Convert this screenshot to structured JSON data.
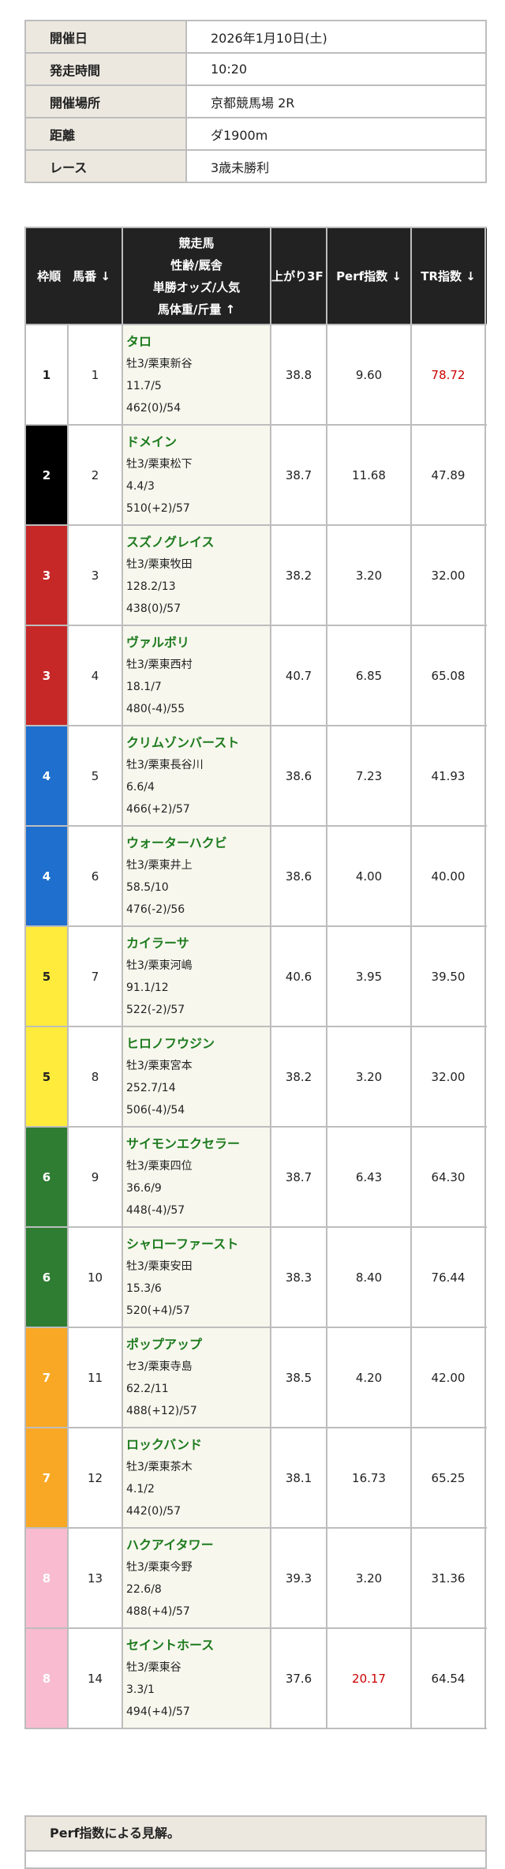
{
  "info": [
    {
      "label": "開催日",
      "value": "2026年1月10日(土)"
    },
    {
      "label": "発走時間",
      "value": "10:20"
    },
    {
      "label": "開催場所",
      "value": "京都競馬場 2R"
    },
    {
      "label": "距離",
      "value": "ダ1900m"
    },
    {
      "label": "レース",
      "value": "3歳未勝利"
    }
  ],
  "table": {
    "headers": {
      "frame_num": "枠順　馬番 ↓",
      "horse": [
        "競走馬",
        "性齢/厩舎",
        "単勝オッズ/人気",
        "馬体重/斤量 ↑"
      ],
      "last3f": "上がり3F ↓",
      "perf": "Perf指数 ↓",
      "tr": "TR指数 ↓"
    },
    "frame_colors": {
      "1": "#ffffff",
      "2": "#000000",
      "3": "#c62828",
      "4": "#1e6fce",
      "5": "#ffeb3b",
      "6": "#2e7d32",
      "7": "#f9a825",
      "8": "#f8bbd0"
    },
    "highlight_color": "#cc0000",
    "rows": [
      {
        "frame": "1",
        "num": "1",
        "name": "タロ",
        "sex_stable": "牡3/栗東新谷",
        "odds": "11.7/5",
        "weight": "462(0)/54",
        "last3f": "38.8",
        "perf": "9.60",
        "tr": "78.72",
        "tr_hl": true
      },
      {
        "frame": "2",
        "num": "2",
        "name": "ドメイン",
        "sex_stable": "牡3/栗東松下",
        "odds": "4.4/3",
        "weight": "510(+2)/57",
        "last3f": "38.7",
        "perf": "11.68",
        "tr": "47.89"
      },
      {
        "frame": "3",
        "num": "3",
        "name": "スズノグレイス",
        "sex_stable": "牡3/栗東牧田",
        "odds": "128.2/13",
        "weight": "438(0)/57",
        "last3f": "38.2",
        "perf": "3.20",
        "tr": "32.00"
      },
      {
        "frame": "3",
        "num": "4",
        "name": "ヴァルボリ",
        "sex_stable": "牡3/栗東西村",
        "odds": "18.1/7",
        "weight": "480(-4)/55",
        "last3f": "40.7",
        "perf": "6.85",
        "tr": "65.08"
      },
      {
        "frame": "4",
        "num": "5",
        "name": "クリムゾンバースト",
        "sex_stable": "牡3/栗東長谷川",
        "odds": "6.6/4",
        "weight": "466(+2)/57",
        "last3f": "38.6",
        "perf": "7.23",
        "tr": "41.93"
      },
      {
        "frame": "4",
        "num": "6",
        "name": "ウォーターハクビ",
        "sex_stable": "牡3/栗東井上",
        "odds": "58.5/10",
        "weight": "476(-2)/56",
        "last3f": "38.6",
        "perf": "4.00",
        "tr": "40.00"
      },
      {
        "frame": "5",
        "num": "7",
        "name": "カイラーサ",
        "sex_stable": "牡3/栗東河嶋",
        "odds": "91.1/12",
        "weight": "522(-2)/57",
        "last3f": "40.6",
        "perf": "3.95",
        "tr": "39.50"
      },
      {
        "frame": "5",
        "num": "8",
        "name": "ヒロノフウジン",
        "sex_stable": "牡3/栗東宮本",
        "odds": "252.7/14",
        "weight": "506(-4)/54",
        "last3f": "38.2",
        "perf": "3.20",
        "tr": "32.00"
      },
      {
        "frame": "6",
        "num": "9",
        "name": "サイモンエクセラー",
        "sex_stable": "牡3/栗東四位",
        "odds": "36.6/9",
        "weight": "448(-4)/57",
        "last3f": "38.7",
        "perf": "6.43",
        "tr": "64.30"
      },
      {
        "frame": "6",
        "num": "10",
        "name": "シャローファースト",
        "sex_stable": "牡3/栗東安田",
        "odds": "15.3/6",
        "weight": "520(+4)/57",
        "last3f": "38.3",
        "perf": "8.40",
        "tr": "76.44"
      },
      {
        "frame": "7",
        "num": "11",
        "name": "ポップアップ",
        "sex_stable": "セ3/栗東寺島",
        "odds": "62.2/11",
        "weight": "488(+12)/57",
        "last3f": "38.5",
        "perf": "4.20",
        "tr": "42.00"
      },
      {
        "frame": "7",
        "num": "12",
        "name": "ロックバンド",
        "sex_stable": "牡3/栗東茶木",
        "odds": "4.1/2",
        "weight": "442(0)/57",
        "last3f": "38.1",
        "perf": "16.73",
        "tr": "65.25"
      },
      {
        "frame": "8",
        "num": "13",
        "name": "ハクアイタワー",
        "sex_stable": "牡3/栗東今野",
        "odds": "22.6/8",
        "weight": "488(+4)/57",
        "last3f": "39.3",
        "perf": "3.20",
        "tr": "31.36"
      },
      {
        "frame": "8",
        "num": "14",
        "name": "セイントホース",
        "sex_stable": "牡3/栗東谷",
        "odds": "3.3/1",
        "weight": "494(+4)/57",
        "last3f": "37.6",
        "perf": "20.17",
        "tr": "64.54",
        "perf_hl": true
      }
    ]
  },
  "perf_section": {
    "title": "Perf指数による見解。"
  }
}
